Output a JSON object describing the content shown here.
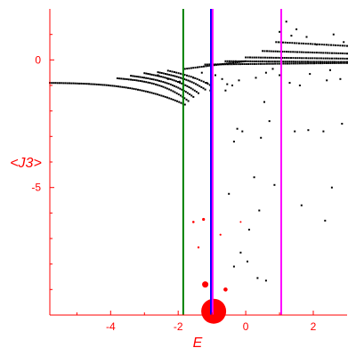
{
  "chart_data": {
    "type": "scatter",
    "xlabel": "E",
    "ylabel": "<J3>",
    "xlim": [
      -5.8,
      3.0
    ],
    "ylim": [
      -10.0,
      2.0
    ],
    "x_ticks": [
      {
        "value": -4,
        "label": "-4"
      },
      {
        "value": -2,
        "label": "-2"
      },
      {
        "value": 0,
        "label": "0"
      },
      {
        "value": 2,
        "label": "2"
      }
    ],
    "y_ticks": [
      {
        "value": 0,
        "label": "0"
      },
      {
        "value": -5,
        "label": "-5"
      }
    ],
    "vertical_lines": [
      {
        "x": -1.85,
        "color": "#008000"
      },
      {
        "x": -1.03,
        "color": "#0000ff"
      },
      {
        "x": -0.98,
        "color": "#ff00ff"
      },
      {
        "x": 1.05,
        "color": "#ff00ff"
      }
    ],
    "bands": [
      {
        "x_start": -5.8,
        "x_end": -1.8,
        "y_start": -0.9,
        "y_end": -0.98,
        "curve": -2.2,
        "count": 70
      },
      {
        "x_start": -3.8,
        "x_end": -1.7,
        "y_start": -0.72,
        "y_end": -0.98,
        "curve": -1.8,
        "count": 38
      },
      {
        "x_start": -3.4,
        "x_end": -1.55,
        "y_start": -0.62,
        "y_end": -0.96,
        "curve": -1.4,
        "count": 34
      },
      {
        "x_start": -3.0,
        "x_end": -1.4,
        "y_start": -0.52,
        "y_end": -0.92,
        "curve": -1.1,
        "count": 30
      },
      {
        "x_start": -2.6,
        "x_end": -1.2,
        "y_start": -0.48,
        "y_end": -0.88,
        "curve": -0.8,
        "count": 26
      },
      {
        "x_start": -2.3,
        "x_end": -1.0,
        "y_start": -0.42,
        "y_end": -0.82,
        "curve": -0.6,
        "count": 22
      },
      {
        "x_start": -1.8,
        "x_end": 0.0,
        "y_start": -0.35,
        "y_end": -0.05,
        "curve": 0.0,
        "count": 30
      },
      {
        "x_start": -1.2,
        "x_end": 3.0,
        "y_start": -0.18,
        "y_end": -0.12,
        "curve": 0.0,
        "count": 70
      },
      {
        "x_start": -0.6,
        "x_end": 3.0,
        "y_start": -0.05,
        "y_end": -0.08,
        "curve": 0.0,
        "count": 60
      },
      {
        "x_start": 0.0,
        "x_end": 3.0,
        "y_start": 0.1,
        "y_end": 0.05,
        "curve": 0.0,
        "count": 48
      },
      {
        "x_start": 0.5,
        "x_end": 3.0,
        "y_start": 0.35,
        "y_end": 0.25,
        "curve": 0.0,
        "count": 40
      },
      {
        "x_start": 0.9,
        "x_end": 3.0,
        "y_start": 0.7,
        "y_end": 0.55,
        "curve": 0.0,
        "count": 32
      }
    ],
    "points": [
      [
        -2.6,
        -0.6
      ],
      [
        -2.3,
        -0.75
      ],
      [
        -1.95,
        -0.85
      ],
      [
        -1.55,
        -0.7
      ],
      [
        -1.3,
        -0.5
      ],
      [
        -1.15,
        -0.9
      ],
      [
        -0.9,
        -0.6
      ],
      [
        -0.7,
        -0.75
      ],
      [
        -0.55,
        -0.95
      ],
      [
        -0.6,
        -1.2
      ],
      [
        -0.4,
        -1.0
      ],
      [
        -0.2,
        -0.8
      ],
      [
        0.3,
        -0.7
      ],
      [
        0.6,
        -0.5
      ],
      [
        1.0,
        -0.6
      ],
      [
        1.3,
        -0.9
      ],
      [
        1.6,
        -1.0
      ],
      [
        2.4,
        -0.8
      ],
      [
        2.8,
        -0.75
      ],
      [
        -0.25,
        -2.7
      ],
      [
        -0.1,
        -2.8
      ],
      [
        0.55,
        -1.65
      ],
      [
        0.7,
        -2.4
      ],
      [
        0.45,
        -3.05
      ],
      [
        -0.35,
        -3.2
      ],
      [
        1.45,
        -2.8
      ],
      [
        1.85,
        -2.75
      ],
      [
        2.3,
        -2.8
      ],
      [
        2.85,
        -2.5
      ],
      [
        0.25,
        -4.6
      ],
      [
        0.4,
        -5.9
      ],
      [
        0.85,
        -4.9
      ],
      [
        -0.5,
        -5.25
      ],
      [
        0.1,
        -6.65
      ],
      [
        -0.15,
        -7.55
      ],
      [
        0.05,
        -7.9
      ],
      [
        -0.35,
        -8.1
      ],
      [
        0.6,
        -8.65
      ],
      [
        1.65,
        -5.7
      ],
      [
        2.35,
        -6.3
      ],
      [
        2.55,
        -5.0
      ],
      [
        1.05,
        -6.55
      ],
      [
        0.35,
        -8.55
      ],
      [
        1.2,
        1.5
      ],
      [
        1.5,
        1.2
      ],
      [
        1.0,
        1.1
      ],
      [
        1.8,
        0.9
      ],
      [
        2.6,
        1.0
      ],
      [
        2.1,
        0.6
      ],
      [
        1.35,
        0.95
      ],
      [
        2.9,
        0.7
      ],
      [
        2.5,
        -0.4
      ],
      [
        1.9,
        -0.55
      ],
      [
        0.8,
        -0.35
      ],
      [
        -1.05,
        -1.2
      ]
    ],
    "red_points": [
      [
        -1.55,
        -6.35,
        1.3
      ],
      [
        -1.25,
        -6.25,
        1.6
      ],
      [
        -0.75,
        -6.85,
        1.1
      ],
      [
        -1.4,
        -7.35,
        1.2
      ],
      [
        -0.15,
        -6.35,
        1.0
      ],
      [
        -1.2,
        -8.8,
        3.5
      ],
      [
        -0.6,
        -9.0,
        2.3
      ],
      [
        -0.95,
        -9.85,
        14.0
      ]
    ]
  }
}
